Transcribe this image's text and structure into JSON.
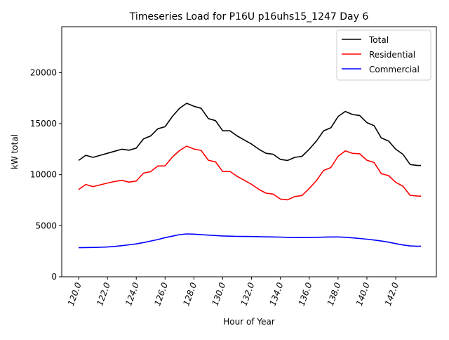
{
  "chart_data": {
    "type": "line",
    "title": "Timeseries Load for P16U p16uhs15_1247  Day 6",
    "xlabel": "Hour of Year",
    "ylabel": "kW total",
    "xlim": [
      118.83,
      144.82
    ],
    "ylim": [
      0,
      24500
    ],
    "xticks": [
      120,
      122,
      124,
      126,
      128,
      130,
      132,
      134,
      136,
      138,
      140,
      142
    ],
    "xtick_labels": [
      "120.0",
      "122.0",
      "124.0",
      "126.0",
      "128.0",
      "130.0",
      "132.0",
      "134.0",
      "136.0",
      "138.0",
      "140.0",
      "142.0"
    ],
    "yticks": [
      0,
      5000,
      10000,
      15000,
      20000
    ],
    "ytick_labels": [
      "0",
      "5000",
      "10000",
      "15000",
      "20000"
    ],
    "legend_position": "top-right",
    "grid": false,
    "x": [
      120,
      120.5,
      121,
      121.5,
      122,
      122.5,
      123,
      123.5,
      124,
      124.5,
      125,
      125.5,
      126,
      126.5,
      127,
      127.5,
      128,
      128.5,
      129,
      129.5,
      130,
      130.5,
      131,
      131.5,
      132,
      132.5,
      133,
      133.5,
      134,
      134.5,
      135,
      135.5,
      136,
      136.5,
      137,
      137.5,
      138,
      138.5,
      139,
      139.5,
      140,
      140.5,
      141,
      141.5,
      142,
      142.5,
      143,
      143.5,
      143.75
    ],
    "series": [
      {
        "name": "Total",
        "color": "#000000",
        "values": [
          11400,
          11900,
          11700,
          11900,
          12100,
          12300,
          12500,
          12400,
          12600,
          13500,
          13800,
          14500,
          14700,
          15700,
          16500,
          17000,
          16700,
          16500,
          15500,
          15300,
          14300,
          14300,
          13800,
          13400,
          13000,
          12500,
          12100,
          12000,
          11500,
          11400,
          11700,
          11800,
          12500,
          13300,
          14300,
          14600,
          15700,
          16200,
          15900,
          15800,
          15100,
          14800,
          13600,
          13300,
          12500,
          12000,
          11000,
          10900,
          10900
        ]
      },
      {
        "name": "Residential",
        "color": "#ff0000",
        "values": [
          8550,
          9040,
          8830,
          9010,
          9180,
          9330,
          9450,
          9270,
          9380,
          10150,
          10300,
          10850,
          10870,
          11720,
          12370,
          12800,
          12520,
          12380,
          11420,
          11260,
          10300,
          10320,
          9840,
          9450,
          9060,
          8570,
          8190,
          8100,
          7610,
          7540,
          7860,
          7960,
          8650,
          9430,
          10420,
          10700,
          11800,
          12330,
          12090,
          12050,
          11420,
          11200,
          10100,
          9910,
          9250,
          8880,
          7980,
          7910,
          7900
        ]
      },
      {
        "name": "Commercial",
        "color": "#0000ff",
        "values": [
          2850,
          2860,
          2870,
          2890,
          2920,
          2970,
          3050,
          3130,
          3220,
          3350,
          3500,
          3650,
          3830,
          3980,
          4130,
          4200,
          4180,
          4120,
          4080,
          4040,
          4000,
          3980,
          3960,
          3950,
          3940,
          3930,
          3910,
          3900,
          3890,
          3860,
          3840,
          3840,
          3850,
          3870,
          3880,
          3900,
          3900,
          3870,
          3810,
          3750,
          3680,
          3600,
          3500,
          3390,
          3250,
          3120,
          3020,
          2990,
          3000
        ]
      }
    ]
  }
}
